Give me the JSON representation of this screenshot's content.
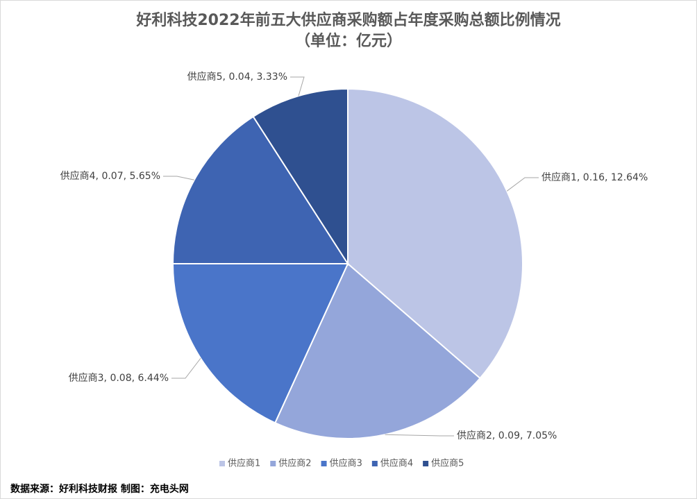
{
  "chart_data": {
    "type": "pie",
    "title": "好利科技2022年前五大供应商采购额占年度采购总额比例情况",
    "subtitle": "（单位：亿元）",
    "categories": [
      "供应商1",
      "供应商2",
      "供应商3",
      "供应商4",
      "供应商5"
    ],
    "values": [
      0.16,
      0.09,
      0.08,
      0.07,
      0.04
    ],
    "value_labels": [
      "供应商1, 0.16, 12.64%",
      "供应商2, 0.09, 7.05%",
      "供应商3, 0.08, 6.44%",
      "供应商4, 0.07, 5.65%",
      "供应商5, 0.04, 3.33%"
    ],
    "colors": [
      "#bcc5e6",
      "#94a6da",
      "#4a75c9",
      "#3e64b2",
      "#2f5090"
    ],
    "legend": "bottom",
    "source": "数据来源：好利科技财报 制图：充电头网"
  }
}
